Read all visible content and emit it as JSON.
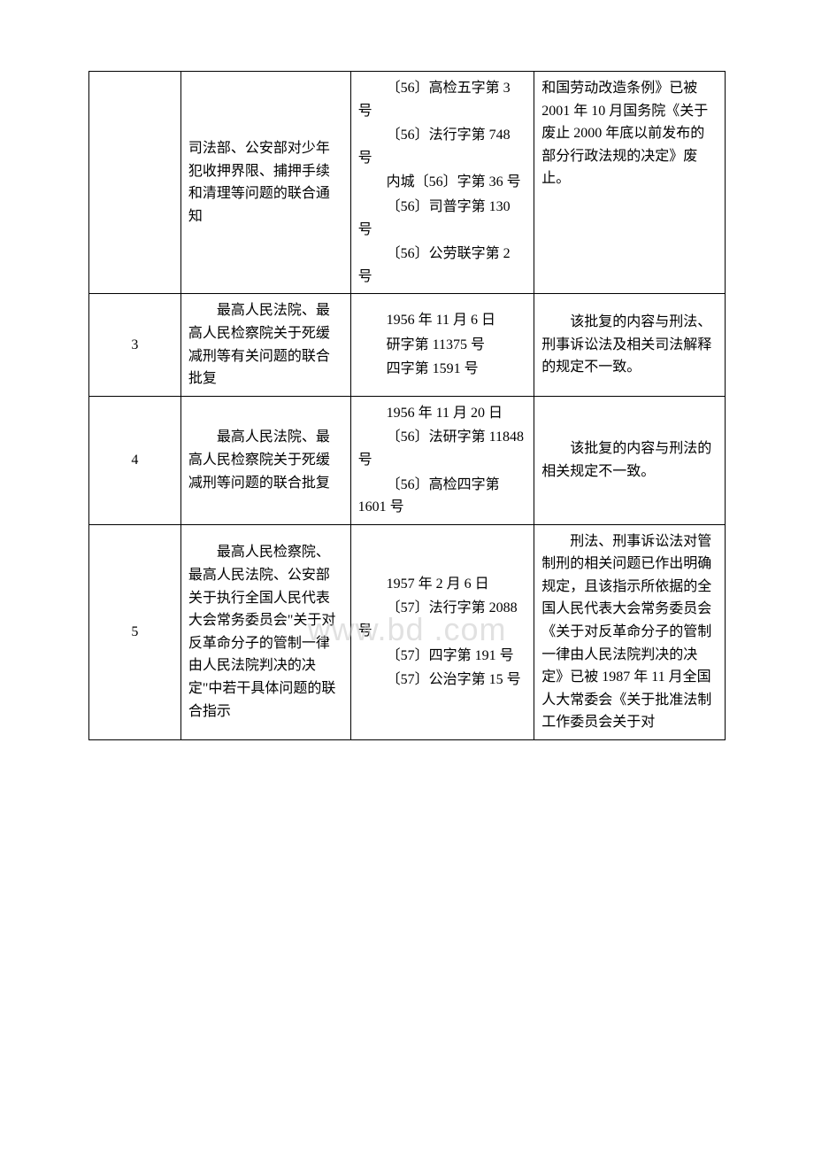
{
  "watermark": "www.bd .com",
  "table": {
    "rows": [
      {
        "num": "",
        "name_paras": [
          "司法部、公安部对少年犯收押界限、捕押手续和清理等问题的联合通知"
        ],
        "name_indent": false,
        "docnum_paras": [
          "〔56〕高检五字第 3 号",
          "〔56〕法行字第 748 号",
          "内城〔56〕字第 36 号",
          "〔56〕司普字第 130 号",
          "〔56〕公劳联字第 2 号"
        ],
        "reason_paras": [
          "和国劳动改造条例》已被 2001 年 10 月国务院《关于废止 2000 年底以前发布的部分行政法规的决定》废止。"
        ],
        "reason_indent": false,
        "reason_valign": "top"
      },
      {
        "num": "3",
        "name_paras": [
          "最高人民法院、最高人民检察院关于死缓减刑等有关问题的联合批复"
        ],
        "name_indent": true,
        "docnum_paras": [
          "1956 年 11 月 6 日",
          "研字第 11375 号",
          "四字第 1591 号"
        ],
        "reason_paras": [
          "该批复的内容与刑法、刑事诉讼法及相关司法解释的规定不一致。"
        ],
        "reason_indent": true,
        "reason_valign": "middle"
      },
      {
        "num": "4",
        "name_paras": [
          "最高人民法院、最高人民检察院关于死缓减刑等问题的联合批复"
        ],
        "name_indent": true,
        "docnum_paras": [
          "1956 年 11 月 20 日",
          "〔56〕法研字第 11848 号",
          "〔56〕高检四字第 1601 号"
        ],
        "reason_paras": [
          "该批复的内容与刑法的相关规定不一致。"
        ],
        "reason_indent": true,
        "reason_valign": "middle"
      },
      {
        "num": "5",
        "name_paras": [
          "最高人民检察院、最高人民法院、公安部关于执行全国人民代表大会常务委员会\"关于对反革命分子的管制一律由人民法院判决的决定\"中若干具体问题的联合指示"
        ],
        "name_indent": true,
        "docnum_paras": [
          "1957 年 2 月 6 日",
          "〔57〕法行字第 2088 号",
          "〔57〕四字第 191 号",
          "〔57〕公治字第 15 号"
        ],
        "reason_paras": [
          "刑法、刑事诉讼法对管制刑的相关问题已作出明确规定，且该指示所依据的全国人民代表大会常务委员会《关于对反革命分子的管制一律由人民法院判决的决定》已被 1987 年 11 月全国人大常委会《关于批准法制工作委员会关于对"
        ],
        "reason_indent": true,
        "reason_valign": "middle"
      }
    ]
  }
}
